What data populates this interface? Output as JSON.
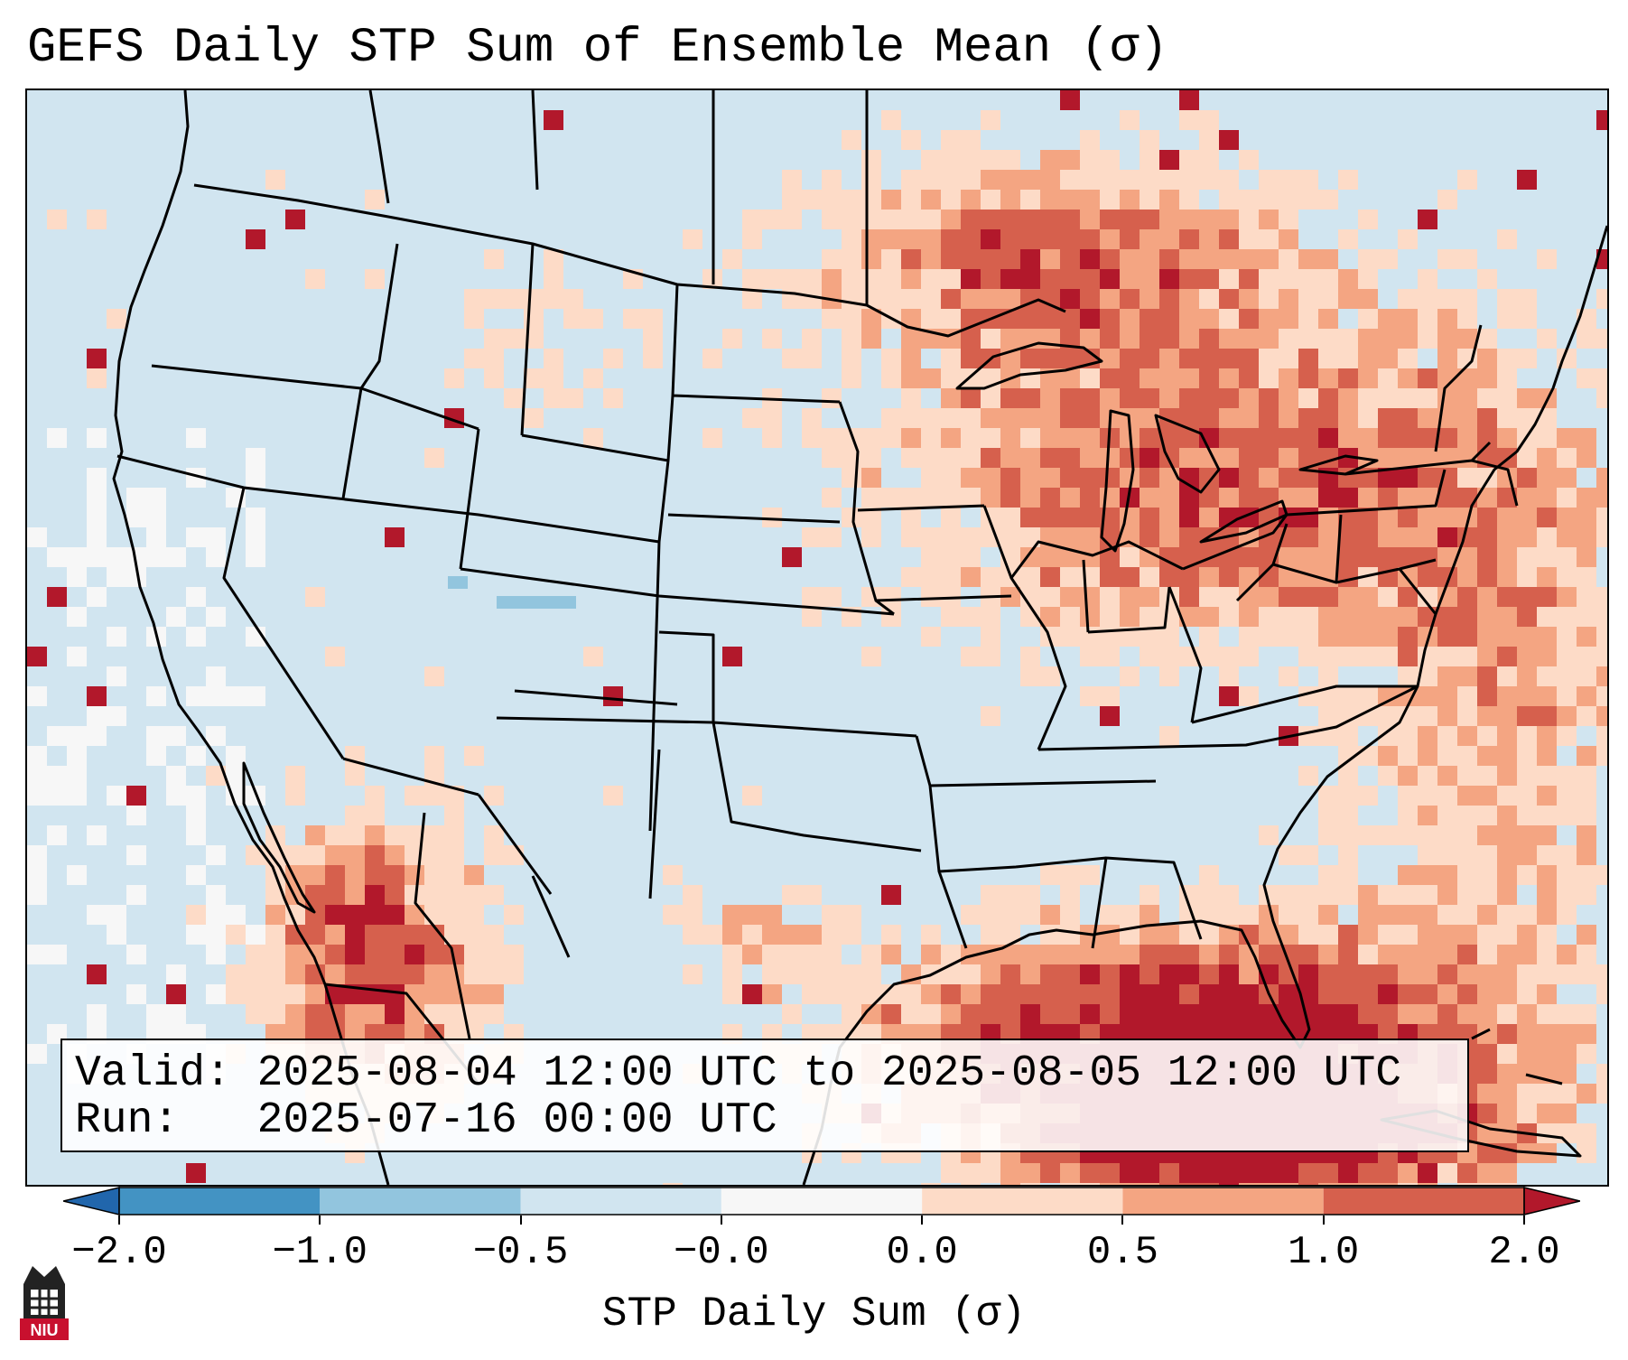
{
  "title": "GEFS Daily STP Sum of Ensemble Mean (σ)",
  "info": {
    "valid_label": "Valid:",
    "valid_value": "2025-08-04 12:00 UTC to 2025-08-05 12:00 UTC",
    "run_label": "Run:",
    "run_value": "2025-07-16 00:00 UTC"
  },
  "colorbar": {
    "label": "STP Daily Sum (σ)",
    "tick_labels": [
      "−2.0",
      "−1.0",
      "−0.5",
      "−0.0",
      "0.0",
      "0.5",
      "1.0",
      "2.0"
    ],
    "bins": [
      {
        "range": "< -2.0",
        "color": "#2166ac"
      },
      {
        "range": "-2.0 to -1.0",
        "color": "#4393c3"
      },
      {
        "range": "-1.0 to -0.5",
        "color": "#92c5de"
      },
      {
        "range": "-0.5 to -0.0",
        "color": "#d1e5f0"
      },
      {
        "range": "-0.0 to 0.0",
        "color": "#f7f7f7"
      },
      {
        "range": "0.0 to 0.5",
        "color": "#fddbc7"
      },
      {
        "range": "0.5 to 1.0",
        "color": "#f4a582"
      },
      {
        "range": "1.0 to 2.0",
        "color": "#d6604d"
      },
      {
        "range": "> 2.0",
        "color": "#b2182b"
      }
    ]
  },
  "map": {
    "projection": "Lambert Conformal (CONUS)",
    "background_color": "#d1e5f0",
    "border_color": "#000000"
  },
  "logo": {
    "text": "NIU",
    "color": "#c8102e"
  }
}
